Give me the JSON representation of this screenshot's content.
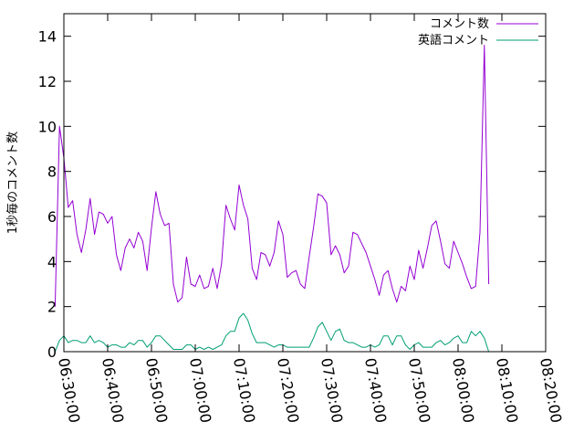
{
  "chart_data": {
    "type": "line",
    "title": "",
    "xlabel": "",
    "ylabel": "1秒毎のコメント数",
    "xlim": [
      "06:30:00",
      "08:20:00"
    ],
    "ylim": [
      0,
      15
    ],
    "x_ticks": [
      "06:30:00",
      "06:40:00",
      "06:50:00",
      "07:00:00",
      "07:10:00",
      "07:20:00",
      "07:30:00",
      "07:40:00",
      "07:50:00",
      "08:00:00",
      "08:10:00",
      "08:20:00"
    ],
    "y_ticks": [
      0,
      2,
      4,
      6,
      8,
      10,
      12,
      14
    ],
    "grid": false,
    "legend_position": "top-right",
    "series": [
      {
        "name": "コメント数",
        "color": "#9400d3",
        "points": [
          [
            "06:28:00",
            2.0
          ],
          [
            "06:29:00",
            10.0
          ],
          [
            "06:30:00",
            8.6
          ],
          [
            "06:31:00",
            6.4
          ],
          [
            "06:32:00",
            6.7
          ],
          [
            "06:33:00",
            5.2
          ],
          [
            "06:34:00",
            4.4
          ],
          [
            "06:35:00",
            5.4
          ],
          [
            "06:36:00",
            6.8
          ],
          [
            "06:37:00",
            5.2
          ],
          [
            "06:38:00",
            6.2
          ],
          [
            "06:39:00",
            6.1
          ],
          [
            "06:40:00",
            5.7
          ],
          [
            "06:41:00",
            6.0
          ],
          [
            "06:42:00",
            4.3
          ],
          [
            "06:43:00",
            3.6
          ],
          [
            "06:44:00",
            4.6
          ],
          [
            "06:45:00",
            5.0
          ],
          [
            "06:46:00",
            4.6
          ],
          [
            "06:47:00",
            5.3
          ],
          [
            "06:48:00",
            4.9
          ],
          [
            "06:49:00",
            3.6
          ],
          [
            "06:50:00",
            5.5
          ],
          [
            "06:51:00",
            7.1
          ],
          [
            "06:52:00",
            6.1
          ],
          [
            "06:53:00",
            5.6
          ],
          [
            "06:54:00",
            5.7
          ],
          [
            "06:55:00",
            3.0
          ],
          [
            "06:56:00",
            2.2
          ],
          [
            "06:57:00",
            2.4
          ],
          [
            "06:58:00",
            4.2
          ],
          [
            "06:59:00",
            3.0
          ],
          [
            "07:00:00",
            2.9
          ],
          [
            "07:01:00",
            3.4
          ],
          [
            "07:02:00",
            2.8
          ],
          [
            "07:03:00",
            2.9
          ],
          [
            "07:04:00",
            3.7
          ],
          [
            "07:05:00",
            2.8
          ],
          [
            "07:06:00",
            3.9
          ],
          [
            "07:07:00",
            6.5
          ],
          [
            "07:08:00",
            5.9
          ],
          [
            "07:09:00",
            5.4
          ],
          [
            "07:10:00",
            7.4
          ],
          [
            "07:11:00",
            6.5
          ],
          [
            "07:12:00",
            5.9
          ],
          [
            "07:13:00",
            3.7
          ],
          [
            "07:14:00",
            3.2
          ],
          [
            "07:15:00",
            4.4
          ],
          [
            "07:16:00",
            4.3
          ],
          [
            "07:17:00",
            3.8
          ],
          [
            "07:18:00",
            4.4
          ],
          [
            "07:19:00",
            5.8
          ],
          [
            "07:20:00",
            5.2
          ],
          [
            "07:21:00",
            3.3
          ],
          [
            "07:22:00",
            3.5
          ],
          [
            "07:23:00",
            3.6
          ],
          [
            "07:24:00",
            3.0
          ],
          [
            "07:25:00",
            2.8
          ],
          [
            "07:26:00",
            4.2
          ],
          [
            "07:27:00",
            5.5
          ],
          [
            "07:28:00",
            7.0
          ],
          [
            "07:29:00",
            6.9
          ],
          [
            "07:30:00",
            6.6
          ],
          [
            "07:31:00",
            4.3
          ],
          [
            "07:32:00",
            4.7
          ],
          [
            "07:33:00",
            4.3
          ],
          [
            "07:34:00",
            3.5
          ],
          [
            "07:35:00",
            3.8
          ],
          [
            "07:36:00",
            5.3
          ],
          [
            "07:37:00",
            5.2
          ],
          [
            "07:38:00",
            4.8
          ],
          [
            "07:39:00",
            4.4
          ],
          [
            "07:40:00",
            3.8
          ],
          [
            "07:41:00",
            3.2
          ],
          [
            "07:42:00",
            2.5
          ],
          [
            "07:43:00",
            3.4
          ],
          [
            "07:44:00",
            3.6
          ],
          [
            "07:45:00",
            2.8
          ],
          [
            "07:46:00",
            2.2
          ],
          [
            "07:47:00",
            2.9
          ],
          [
            "07:48:00",
            2.7
          ],
          [
            "07:49:00",
            3.8
          ],
          [
            "07:50:00",
            3.2
          ],
          [
            "07:51:00",
            4.5
          ],
          [
            "07:52:00",
            3.7
          ],
          [
            "07:53:00",
            4.6
          ],
          [
            "07:54:00",
            5.6
          ],
          [
            "07:55:00",
            5.8
          ],
          [
            "07:56:00",
            4.9
          ],
          [
            "07:57:00",
            3.9
          ],
          [
            "07:58:00",
            3.7
          ],
          [
            "07:59:00",
            4.9
          ],
          [
            "08:00:00",
            4.4
          ],
          [
            "08:01:00",
            3.9
          ],
          [
            "08:02:00",
            3.3
          ],
          [
            "08:03:00",
            2.8
          ],
          [
            "08:04:00",
            2.9
          ],
          [
            "08:05:00",
            5.3
          ],
          [
            "08:06:00",
            13.6
          ],
          [
            "08:07:00",
            3.0
          ]
        ]
      },
      {
        "name": "英語コメント",
        "color": "#009e73",
        "points": [
          [
            "06:28:00",
            0.0
          ],
          [
            "06:29:00",
            0.5
          ],
          [
            "06:30:00",
            0.7
          ],
          [
            "06:31:00",
            0.4
          ],
          [
            "06:32:00",
            0.5
          ],
          [
            "06:33:00",
            0.5
          ],
          [
            "06:34:00",
            0.4
          ],
          [
            "06:35:00",
            0.4
          ],
          [
            "06:36:00",
            0.7
          ],
          [
            "06:37:00",
            0.4
          ],
          [
            "06:38:00",
            0.5
          ],
          [
            "06:39:00",
            0.4
          ],
          [
            "06:40:00",
            0.2
          ],
          [
            "06:41:00",
            0.3
          ],
          [
            "06:42:00",
            0.3
          ],
          [
            "06:43:00",
            0.2
          ],
          [
            "06:44:00",
            0.2
          ],
          [
            "06:45:00",
            0.4
          ],
          [
            "06:46:00",
            0.3
          ],
          [
            "06:47:00",
            0.5
          ],
          [
            "06:48:00",
            0.5
          ],
          [
            "06:49:00",
            0.2
          ],
          [
            "06:50:00",
            0.4
          ],
          [
            "06:51:00",
            0.7
          ],
          [
            "06:52:00",
            0.7
          ],
          [
            "06:53:00",
            0.5
          ],
          [
            "06:54:00",
            0.3
          ],
          [
            "06:55:00",
            0.1
          ],
          [
            "06:56:00",
            0.1
          ],
          [
            "06:57:00",
            0.1
          ],
          [
            "06:58:00",
            0.3
          ],
          [
            "06:59:00",
            0.3
          ],
          [
            "07:00:00",
            0.1
          ],
          [
            "07:01:00",
            0.2
          ],
          [
            "07:02:00",
            0.1
          ],
          [
            "07:03:00",
            0.2
          ],
          [
            "07:04:00",
            0.1
          ],
          [
            "07:05:00",
            0.2
          ],
          [
            "07:06:00",
            0.3
          ],
          [
            "07:07:00",
            0.7
          ],
          [
            "07:08:00",
            0.9
          ],
          [
            "07:09:00",
            0.9
          ],
          [
            "07:10:00",
            1.5
          ],
          [
            "07:11:00",
            1.7
          ],
          [
            "07:12:00",
            1.4
          ],
          [
            "07:13:00",
            0.8
          ],
          [
            "07:14:00",
            0.4
          ],
          [
            "07:15:00",
            0.4
          ],
          [
            "07:16:00",
            0.4
          ],
          [
            "07:17:00",
            0.3
          ],
          [
            "07:18:00",
            0.2
          ],
          [
            "07:19:00",
            0.3
          ],
          [
            "07:20:00",
            0.3
          ],
          [
            "07:21:00",
            0.2
          ],
          [
            "07:22:00",
            0.2
          ],
          [
            "07:23:00",
            0.2
          ],
          [
            "07:24:00",
            0.2
          ],
          [
            "07:25:00",
            0.2
          ],
          [
            "07:26:00",
            0.2
          ],
          [
            "07:27:00",
            0.6
          ],
          [
            "07:28:00",
            1.1
          ],
          [
            "07:29:00",
            1.3
          ],
          [
            "07:30:00",
            0.9
          ],
          [
            "07:31:00",
            0.5
          ],
          [
            "07:32:00",
            0.9
          ],
          [
            "07:33:00",
            1.0
          ],
          [
            "07:34:00",
            0.5
          ],
          [
            "07:35:00",
            0.4
          ],
          [
            "07:36:00",
            0.4
          ],
          [
            "07:37:00",
            0.3
          ],
          [
            "07:38:00",
            0.2
          ],
          [
            "07:39:00",
            0.2
          ],
          [
            "07:40:00",
            0.3
          ],
          [
            "07:41:00",
            0.2
          ],
          [
            "07:42:00",
            0.3
          ],
          [
            "07:43:00",
            0.7
          ],
          [
            "07:44:00",
            0.7
          ],
          [
            "07:45:00",
            0.3
          ],
          [
            "07:46:00",
            0.7
          ],
          [
            "07:47:00",
            0.7
          ],
          [
            "07:48:00",
            0.3
          ],
          [
            "07:49:00",
            0.1
          ],
          [
            "07:50:00",
            0.3
          ],
          [
            "07:51:00",
            0.4
          ],
          [
            "07:52:00",
            0.2
          ],
          [
            "07:53:00",
            0.2
          ],
          [
            "07:54:00",
            0.2
          ],
          [
            "07:55:00",
            0.4
          ],
          [
            "07:56:00",
            0.5
          ],
          [
            "07:57:00",
            0.3
          ],
          [
            "07:58:00",
            0.4
          ],
          [
            "07:59:00",
            0.6
          ],
          [
            "08:00:00",
            0.7
          ],
          [
            "08:01:00",
            0.4
          ],
          [
            "08:02:00",
            0.4
          ],
          [
            "08:03:00",
            0.9
          ],
          [
            "08:04:00",
            0.7
          ],
          [
            "08:05:00",
            0.9
          ],
          [
            "08:06:00",
            0.6
          ],
          [
            "08:07:00",
            0.0
          ]
        ]
      }
    ]
  }
}
